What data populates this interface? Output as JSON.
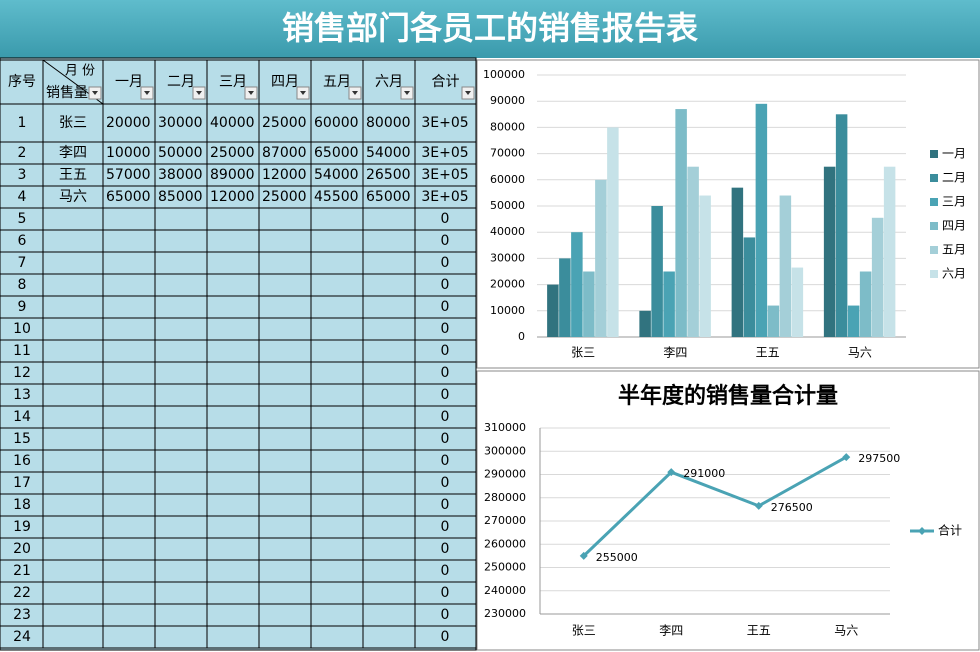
{
  "title": "销售部门各员工的销售报告表",
  "table": {
    "headers": [
      "序号",
      "月 份",
      "销售量",
      "一月",
      "二月",
      "三月",
      "四月",
      "五月",
      "六月",
      "合计"
    ],
    "rows": [
      {
        "no": 1,
        "name": "张三",
        "values": [
          20000,
          30000,
          40000,
          25000,
          60000,
          80000
        ],
        "total": "3E+05"
      },
      {
        "no": 2,
        "name": "李四",
        "values": [
          10000,
          50000,
          25000,
          87000,
          65000,
          54000
        ],
        "total": "3E+05"
      },
      {
        "no": 3,
        "name": "王五",
        "values": [
          57000,
          38000,
          89000,
          12000,
          54000,
          26500
        ],
        "total": "3E+05"
      },
      {
        "no": 4,
        "name": "马六",
        "values": [
          65000,
          85000,
          12000,
          25000,
          45500,
          65000
        ],
        "total": "3E+05"
      },
      {
        "no": 5,
        "total": 0
      },
      {
        "no": 6,
        "total": 0
      },
      {
        "no": 7,
        "total": 0
      },
      {
        "no": 8,
        "total": 0
      },
      {
        "no": 9,
        "total": 0
      },
      {
        "no": 10,
        "total": 0
      },
      {
        "no": 11,
        "total": 0
      },
      {
        "no": 12,
        "total": 0
      },
      {
        "no": 13,
        "total": 0
      },
      {
        "no": 14,
        "total": 0
      },
      {
        "no": 15,
        "total": 0
      },
      {
        "no": 16,
        "total": 0
      },
      {
        "no": 17,
        "total": 0
      },
      {
        "no": 18,
        "total": 0
      },
      {
        "no": 19,
        "total": 0
      },
      {
        "no": 20,
        "total": 0
      },
      {
        "no": 21,
        "total": 0
      },
      {
        "no": 22,
        "total": 0
      },
      {
        "no": 23,
        "total": 0
      },
      {
        "no": 24,
        "total": 0
      }
    ]
  },
  "chart_data": [
    {
      "type": "bar",
      "categories": [
        "张三",
        "李四",
        "王五",
        "马六"
      ],
      "series": [
        {
          "name": "一月",
          "color": "#31737f",
          "values": [
            20000,
            10000,
            57000,
            65000
          ]
        },
        {
          "name": "二月",
          "color": "#3b8d9c",
          "values": [
            30000,
            50000,
            38000,
            85000
          ]
        },
        {
          "name": "三月",
          "color": "#4aa3b4",
          "values": [
            40000,
            25000,
            89000,
            12000
          ]
        },
        {
          "name": "四月",
          "color": "#7dbcc8",
          "values": [
            25000,
            87000,
            12000,
            25000
          ]
        },
        {
          "name": "五月",
          "color": "#a4cfd8",
          "values": [
            60000,
            65000,
            54000,
            45500
          ]
        },
        {
          "name": "六月",
          "color": "#c6e2e8",
          "values": [
            80000,
            54000,
            26500,
            65000
          ]
        }
      ],
      "ylim": [
        0,
        100000
      ],
      "yticks": [
        0,
        10000,
        20000,
        30000,
        40000,
        50000,
        60000,
        70000,
        80000,
        90000,
        100000
      ],
      "grid": true,
      "legend": "right"
    },
    {
      "type": "line",
      "title": "半年度的销售量合计量",
      "categories": [
        "张三",
        "李四",
        "王五",
        "马六"
      ],
      "series": [
        {
          "name": "合计",
          "color": "#4aa3b4",
          "values": [
            255000,
            291000,
            276500,
            297500
          ]
        }
      ],
      "ylim": [
        230000,
        310000
      ],
      "yticks": [
        230000,
        240000,
        250000,
        260000,
        270000,
        280000,
        290000,
        300000,
        310000
      ],
      "grid": true,
      "legend": "right"
    }
  ]
}
